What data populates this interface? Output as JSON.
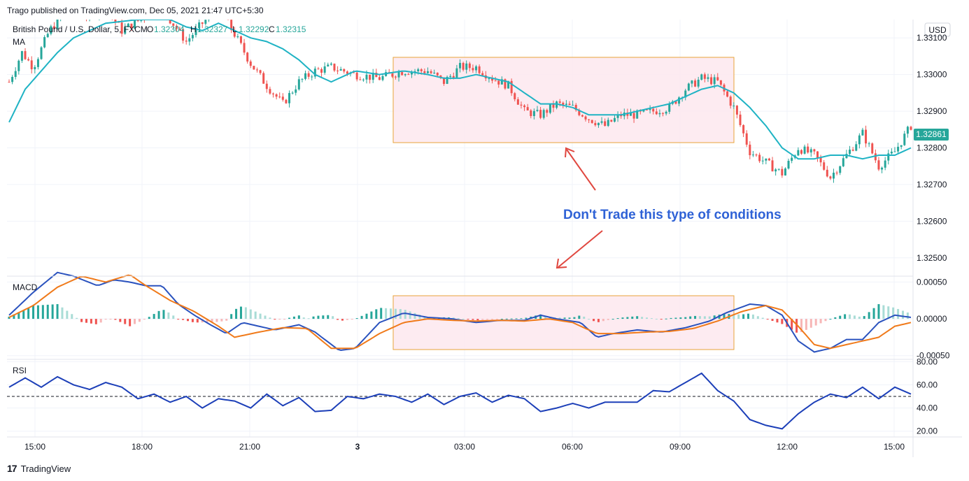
{
  "header": {
    "published": "Trago published on TradingView.com, Dec 05, 2021 21:47 UTC+5:30"
  },
  "legend": {
    "symbol": "British Pound / U.S. Dollar, 5, FXCM",
    "o_label": "O",
    "o_value": "1.32304",
    "h_label": "H",
    "h_value": "1.32327",
    "l_label": "L",
    "l_value": "1.32292",
    "c_label": "C",
    "c_value": "1.32315",
    "ma_label": "MA",
    "macd_label": "MACD",
    "rsi_label": "RSI"
  },
  "currency_badge": "USD",
  "annotation": {
    "text": "Don't Trade this type of conditions"
  },
  "colors": {
    "up": "#26a69a",
    "down": "#ef5350",
    "ma": "#1fb3c4",
    "macd": "#2a52be",
    "signal": "#f07a1a",
    "rsi": "#1c3fb8",
    "zone_fill": "#fde8ee",
    "zone_border": "#e8a33a",
    "annotation_text": "#2f62d6",
    "arrow": "#e0473f",
    "last_price_bg": "#26a69a"
  },
  "footer": {
    "brand": "TradingView"
  },
  "chart_data": [
    {
      "type": "candlestick",
      "title": "British Pound / U.S. Dollar, 5, FXCM",
      "ylim": [
        1.3245,
        1.3315
      ],
      "y_ticks": [
        "1.33100",
        "1.33000",
        "1.32900",
        "1.32800",
        "1.32700",
        "1.32600",
        "1.32500"
      ],
      "x_ticks": [
        "15:00",
        "18:00",
        "21:00",
        "3",
        "03:00",
        "06:00",
        "09:00",
        "12:00",
        "15:00"
      ],
      "last_price": "1.32861",
      "ma_path": [
        [
          0,
          1.3287
        ],
        [
          10,
          1.3296
        ],
        [
          20,
          1.3301
        ],
        [
          30,
          1.3306
        ],
        [
          40,
          1.331
        ],
        [
          60,
          1.3314
        ],
        [
          80,
          1.3315
        ],
        [
          100,
          1.3315
        ],
        [
          110,
          1.3313
        ],
        [
          120,
          1.3312
        ],
        [
          130,
          1.3314
        ],
        [
          140,
          1.3312
        ],
        [
          150,
          1.331
        ],
        [
          160,
          1.3309
        ],
        [
          170,
          1.3307
        ],
        [
          180,
          1.3304
        ],
        [
          190,
          1.33
        ],
        [
          200,
          1.3298
        ],
        [
          215,
          1.3301
        ],
        [
          230,
          1.33
        ],
        [
          245,
          1.3301
        ],
        [
          260,
          1.33
        ],
        [
          270,
          1.3299
        ],
        [
          280,
          1.3299
        ],
        [
          290,
          1.33
        ],
        [
          300,
          1.3299
        ],
        [
          310,
          1.3298
        ],
        [
          320,
          1.3295
        ],
        [
          330,
          1.3292
        ],
        [
          340,
          1.3292
        ],
        [
          350,
          1.3291
        ],
        [
          360,
          1.3289
        ],
        [
          370,
          1.3289
        ],
        [
          380,
          1.3289
        ],
        [
          390,
          1.329
        ],
        [
          400,
          1.3291
        ],
        [
          410,
          1.3292
        ],
        [
          420,
          1.3294
        ],
        [
          430,
          1.3296
        ],
        [
          440,
          1.3297
        ],
        [
          450,
          1.3295
        ],
        [
          460,
          1.3291
        ],
        [
          470,
          1.3286
        ],
        [
          480,
          1.328
        ],
        [
          490,
          1.3277
        ],
        [
          500,
          1.3277
        ],
        [
          510,
          1.3278
        ],
        [
          520,
          1.3278
        ],
        [
          530,
          1.3277
        ],
        [
          540,
          1.3278
        ],
        [
          550,
          1.3278
        ],
        [
          560,
          1.328
        ]
      ],
      "candle_path": [
        [
          0,
          1.3298
        ],
        [
          8,
          1.3306
        ],
        [
          15,
          1.3302
        ],
        [
          25,
          1.3312
        ],
        [
          35,
          1.3317
        ],
        [
          50,
          1.3316
        ],
        [
          60,
          1.3318
        ],
        [
          70,
          1.3312
        ],
        [
          85,
          1.3316
        ],
        [
          95,
          1.3318
        ],
        [
          100,
          1.3315
        ],
        [
          110,
          1.3309
        ],
        [
          120,
          1.3314
        ],
        [
          130,
          1.3318
        ],
        [
          140,
          1.3311
        ],
        [
          150,
          1.3303
        ],
        [
          160,
          1.3297
        ],
        [
          170,
          1.3292
        ],
        [
          180,
          1.3298
        ],
        [
          190,
          1.3301
        ],
        [
          200,
          1.3302
        ],
        [
          215,
          1.33
        ],
        [
          230,
          1.3299
        ],
        [
          245,
          1.3301
        ],
        [
          260,
          1.3301
        ],
        [
          270,
          1.3298
        ],
        [
          280,
          1.3302
        ],
        [
          290,
          1.3302
        ],
        [
          300,
          1.3299
        ],
        [
          310,
          1.3297
        ],
        [
          320,
          1.329
        ],
        [
          330,
          1.3289
        ],
        [
          340,
          1.3292
        ],
        [
          350,
          1.3291
        ],
        [
          360,
          1.3288
        ],
        [
          370,
          1.3286
        ],
        [
          380,
          1.3289
        ],
        [
          390,
          1.3289
        ],
        [
          400,
          1.329
        ],
        [
          410,
          1.3291
        ],
        [
          420,
          1.3296
        ],
        [
          430,
          1.3299
        ],
        [
          440,
          1.3298
        ],
        [
          450,
          1.3291
        ],
        [
          460,
          1.3279
        ],
        [
          470,
          1.3276
        ],
        [
          480,
          1.3273
        ],
        [
          490,
          1.328
        ],
        [
          500,
          1.3278
        ],
        [
          510,
          1.3272
        ],
        [
          520,
          1.3278
        ],
        [
          530,
          1.3284
        ],
        [
          540,
          1.3275
        ],
        [
          550,
          1.3279
        ],
        [
          560,
          1.3286
        ]
      ]
    },
    {
      "type": "line",
      "title": "MACD",
      "ylim": [
        -0.00055,
        0.00058
      ],
      "y_ticks": [
        "0.00050",
        "0.00000",
        "-0.00050"
      ],
      "series": [
        {
          "name": "macd",
          "points": [
            [
              0,
              5e-05
            ],
            [
              15,
              0.00036
            ],
            [
              30,
              0.00063
            ],
            [
              40,
              0.00058
            ],
            [
              55,
              0.00045
            ],
            [
              65,
              0.00053
            ],
            [
              75,
              0.0005
            ],
            [
              85,
              0.00045
            ],
            [
              95,
              0.00045
            ],
            [
              105,
              0.0002
            ],
            [
              115,
              5e-05
            ],
            [
              125,
              -8e-05
            ],
            [
              135,
              -0.0002
            ],
            [
              145,
              -5e-05
            ],
            [
              155,
              -0.0001
            ],
            [
              165,
              -0.00015
            ],
            [
              180,
              -8e-05
            ],
            [
              190,
              -0.00018
            ],
            [
              205,
              -0.00043
            ],
            [
              215,
              -0.0004
            ],
            [
              230,
              -5e-05
            ],
            [
              245,
              8e-05
            ],
            [
              260,
              2e-05
            ],
            [
              275,
              0.0
            ],
            [
              290,
              -5e-05
            ],
            [
              305,
              -2e-05
            ],
            [
              320,
              -2e-05
            ],
            [
              330,
              5e-05
            ],
            [
              340,
              0.0
            ],
            [
              355,
              -5e-05
            ],
            [
              365,
              -0.00025
            ],
            [
              375,
              -0.0002
            ],
            [
              390,
              -0.00015
            ],
            [
              405,
              -0.00018
            ],
            [
              420,
              -0.00012
            ],
            [
              435,
              -3e-05
            ],
            [
              445,
              8e-05
            ],
            [
              460,
              0.0002
            ],
            [
              470,
              0.00018
            ],
            [
              480,
              5e-05
            ],
            [
              490,
              -0.0003
            ],
            [
              500,
              -0.00045
            ],
            [
              510,
              -0.0004
            ],
            [
              520,
              -0.00028
            ],
            [
              530,
              -0.00028
            ],
            [
              540,
              -5e-05
            ],
            [
              550,
              5e-05
            ],
            [
              560,
              2e-05
            ]
          ]
        },
        {
          "name": "signal",
          "points": [
            [
              0,
              2e-05
            ],
            [
              15,
              0.00018
            ],
            [
              30,
              0.00043
            ],
            [
              45,
              0.00058
            ],
            [
              60,
              0.0005
            ],
            [
              75,
              0.0006
            ],
            [
              85,
              0.00045
            ],
            [
              100,
              0.00025
            ],
            [
              115,
              0.0001
            ],
            [
              130,
              -0.0001
            ],
            [
              140,
              -0.00025
            ],
            [
              155,
              -0.00018
            ],
            [
              170,
              -0.00012
            ],
            [
              185,
              -0.00013
            ],
            [
              200,
              -0.0004
            ],
            [
              215,
              -0.0004
            ],
            [
              230,
              -0.0002
            ],
            [
              245,
              -5e-05
            ],
            [
              260,
              0.0
            ],
            [
              275,
              -2e-05
            ],
            [
              290,
              -3e-05
            ],
            [
              305,
              -2e-05
            ],
            [
              320,
              -3e-05
            ],
            [
              335,
              0.0
            ],
            [
              350,
              -5e-05
            ],
            [
              365,
              -0.0002
            ],
            [
              380,
              -0.0002
            ],
            [
              395,
              -0.00018
            ],
            [
              410,
              -0.00017
            ],
            [
              425,
              -0.00013
            ],
            [
              440,
              -3e-05
            ],
            [
              455,
              0.0001
            ],
            [
              470,
              0.00018
            ],
            [
              480,
              0.00012
            ],
            [
              490,
              -0.0001
            ],
            [
              500,
              -0.00035
            ],
            [
              510,
              -0.0004
            ],
            [
              520,
              -0.00035
            ],
            [
              530,
              -0.0003
            ],
            [
              540,
              -0.00025
            ],
            [
              550,
              -0.0001
            ],
            [
              560,
              -5e-05
            ]
          ]
        }
      ]
    },
    {
      "type": "line",
      "title": "RSI",
      "ylim": [
        15,
        82
      ],
      "y_ticks": [
        "80.00",
        "60.00",
        "40.00",
        "20.00"
      ],
      "midline": 50,
      "series": [
        {
          "name": "rsi",
          "points": [
            [
              0,
              58
            ],
            [
              10,
              66
            ],
            [
              20,
              58
            ],
            [
              30,
              67
            ],
            [
              40,
              60
            ],
            [
              50,
              56
            ],
            [
              60,
              62
            ],
            [
              70,
              58
            ],
            [
              80,
              48
            ],
            [
              90,
              52
            ],
            [
              100,
              45
            ],
            [
              110,
              50
            ],
            [
              120,
              40
            ],
            [
              130,
              48
            ],
            [
              140,
              46
            ],
            [
              150,
              40
            ],
            [
              160,
              52
            ],
            [
              170,
              42
            ],
            [
              180,
              49
            ],
            [
              190,
              37
            ],
            [
              200,
              38
            ],
            [
              210,
              50
            ],
            [
              220,
              48
            ],
            [
              230,
              52
            ],
            [
              240,
              50
            ],
            [
              250,
              45
            ],
            [
              260,
              52
            ],
            [
              270,
              43
            ],
            [
              280,
              50
            ],
            [
              290,
              53
            ],
            [
              300,
              45
            ],
            [
              310,
              51
            ],
            [
              320,
              48
            ],
            [
              330,
              37
            ],
            [
              340,
              40
            ],
            [
              350,
              44
            ],
            [
              360,
              40
            ],
            [
              370,
              45
            ],
            [
              380,
              45
            ],
            [
              390,
              45
            ],
            [
              400,
              55
            ],
            [
              410,
              54
            ],
            [
              420,
              62
            ],
            [
              430,
              70
            ],
            [
              440,
              55
            ],
            [
              450,
              46
            ],
            [
              460,
              30
            ],
            [
              470,
              25
            ],
            [
              480,
              22
            ],
            [
              490,
              35
            ],
            [
              500,
              45
            ],
            [
              510,
              52
            ],
            [
              520,
              49
            ],
            [
              530,
              58
            ],
            [
              540,
              48
            ],
            [
              550,
              58
            ],
            [
              560,
              52
            ]
          ]
        }
      ]
    }
  ]
}
